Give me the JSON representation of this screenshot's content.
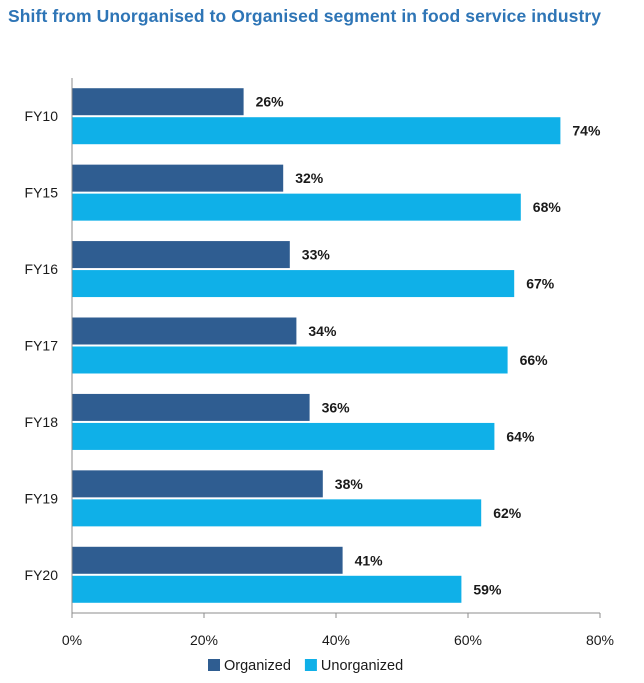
{
  "chart_data": {
    "type": "bar",
    "orientation": "horizontal",
    "title": "Shift from Unorganised to Organised segment in food service industry",
    "categories": [
      "FY10",
      "FY15",
      "FY16",
      "FY17",
      "FY18",
      "FY19",
      "FY20"
    ],
    "series": [
      {
        "name": "Organized",
        "color": "#2F5D91",
        "values": [
          26,
          32,
          33,
          34,
          36,
          38,
          41
        ],
        "labels": [
          "26%",
          "32%",
          "33%",
          "34%",
          "36%",
          "38%",
          "41%"
        ]
      },
      {
        "name": "Unorganized",
        "color": "#0FB0E8",
        "values": [
          74,
          68,
          67,
          66,
          64,
          62,
          59
        ],
        "labels": [
          "74%",
          "68%",
          "67%",
          "66%",
          "64%",
          "62%",
          "59%"
        ]
      }
    ],
    "xlim": [
      0,
      80
    ],
    "xticks": [
      0,
      20,
      40,
      60,
      80
    ],
    "xtick_labels": [
      "0%",
      "20%",
      "40%",
      "60%",
      "80%"
    ],
    "xlabel": "",
    "ylabel": "",
    "grid": false,
    "legend_position": "bottom"
  }
}
